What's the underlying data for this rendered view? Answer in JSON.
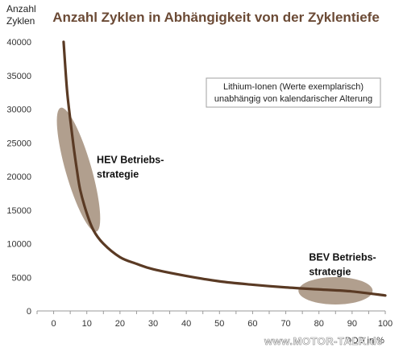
{
  "chart_data": {
    "type": "line",
    "title": "Anzahl Zyklen in Abhängigkeit von der Zyklentiefe",
    "ylabel": "Anzahl\nZyklen",
    "xlabel": "DOD in %",
    "xlim": [
      -5,
      100
    ],
    "ylim": [
      0,
      40000
    ],
    "x_ticks": [
      "0",
      "10",
      "20",
      "30",
      "40",
      "50",
      "60",
      "70",
      "80",
      "90",
      "100"
    ],
    "y_ticks": [
      "0",
      "5000",
      "10000",
      "15000",
      "20000",
      "25000",
      "30000",
      "35000",
      "40000"
    ],
    "grid": false,
    "line_color": "#5a3a24",
    "series": [
      {
        "name": "",
        "x": [
          3,
          4,
          5,
          6,
          7,
          8,
          10,
          12,
          15,
          20,
          25,
          30,
          40,
          50,
          60,
          70,
          80,
          90,
          100
        ],
        "values": [
          40000,
          33000,
          28500,
          24500,
          21000,
          18000,
          14500,
          12000,
          10000,
          8000,
          7000,
          6200,
          5200,
          4400,
          3900,
          3500,
          3200,
          2900,
          2300
        ]
      }
    ],
    "annotations": [
      {
        "text": "HEV Betriebs-\nstrategie",
        "x": 13,
        "y": 22000
      },
      {
        "text": "BEV Betriebs-\nstrategie",
        "x": 77,
        "y": 7500
      }
    ],
    "highlight_regions": [
      {
        "name": "HEV",
        "center": [
          7.5,
          21000
        ],
        "color": "#a08a75"
      },
      {
        "name": "BEV",
        "center": [
          85,
          3000
        ],
        "color": "#a08a75"
      }
    ],
    "note": "Lithium-Ionen (Werte exemplarisch)\nunabhängig von kalendarischer Alterung",
    "watermark": "www.MOTOR-TALK.de"
  }
}
